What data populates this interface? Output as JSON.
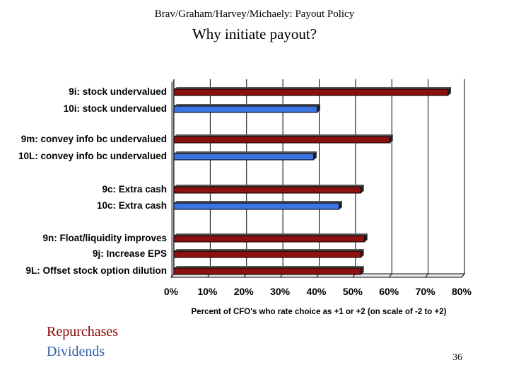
{
  "header": {
    "subtitle": "Brav/Graham/Harvey/Michaely: Payout Policy",
    "title": "Why initiate payout?"
  },
  "chart_data": {
    "type": "bar",
    "orientation": "horizontal",
    "categories": [
      "9i: stock undervalued",
      "10i: stock undervalued",
      "9m: convey info bc undervalued",
      "10L: convey info bc undervalued",
      "9c: Extra cash",
      "10c: Extra cash",
      "9n: Float/liquidity improves",
      "9j: Increase EPS",
      "9L: Offset stock option dilution"
    ],
    "series_of_bar": [
      "repurchases",
      "dividends",
      "repurchases",
      "dividends",
      "repurchases",
      "dividends",
      "repurchases",
      "repurchases",
      "repurchases"
    ],
    "values": [
      75.5,
      39.5,
      59.5,
      38.5,
      51.5,
      45.5,
      52.5,
      51.5,
      51.5
    ],
    "xlabel": "Percent of CFO's who rate choice as +1 or +2 (on scale of -2  to +2)",
    "xlim": [
      0,
      80
    ],
    "xticks": [
      "0%",
      "10%",
      "20%",
      "30%",
      "40%",
      "50%",
      "60%",
      "70%",
      "80%"
    ],
    "grid": true,
    "colors": {
      "repurchases": "#8b1010",
      "dividends": "#3b73e0"
    }
  },
  "legend": {
    "repurchases": "Repurchases",
    "dividends": "Dividends"
  },
  "page_number": "36"
}
